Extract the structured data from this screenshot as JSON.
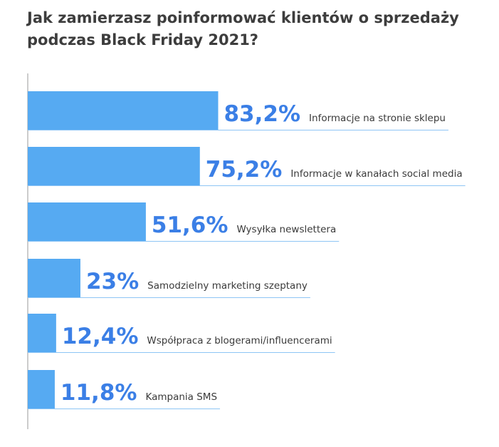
{
  "chart_data": {
    "type": "bar",
    "orientation": "horizontal",
    "title": "Jak zamierzasz poinformować klientów o sprzedaży podczas Black Friday 2021?",
    "categories": [
      "Informacje na stronie sklepu",
      "Informacje w kanałach social media",
      "Wysyłka newslettera",
      "Samodzielny marketing szeptany",
      "Współpraca z blogerami/influencerami",
      "Kampania SMS"
    ],
    "values": [
      83.2,
      75.2,
      51.6,
      23,
      12.4,
      11.8
    ],
    "value_labels": [
      "83,2%",
      "75,2%",
      "51,6%",
      "23%",
      "12,4%",
      "11,8%"
    ],
    "xlim": [
      0,
      100
    ],
    "grid": false,
    "legend": "none",
    "colors": {
      "bar": "#56aaf2",
      "value_text": "#3b7fe6",
      "underline": "#8ec5f5",
      "axis": "#9a9a9a",
      "title": "#3d3d3d"
    }
  }
}
